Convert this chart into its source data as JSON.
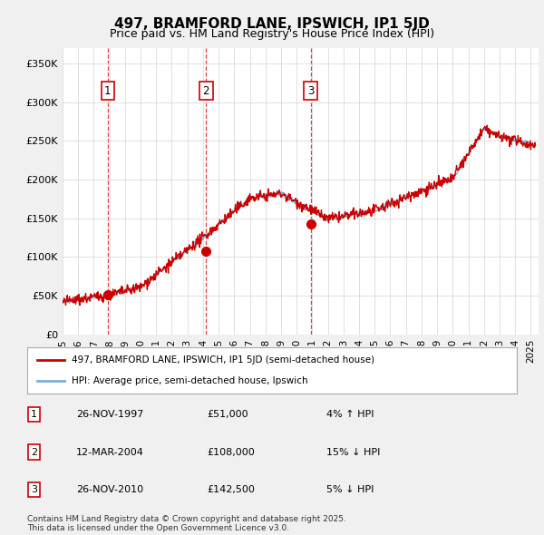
{
  "title": "497, BRAMFORD LANE, IPSWICH, IP1 5JD",
  "subtitle": "Price paid vs. HM Land Registry's House Price Index (HPI)",
  "ylabel_ticks": [
    "£0",
    "£50K",
    "£100K",
    "£150K",
    "£200K",
    "£250K",
    "£300K",
    "£350K"
  ],
  "ytick_values": [
    0,
    50,
    100,
    150,
    200,
    250,
    300,
    350
  ],
  "ylim": [
    0,
    370
  ],
  "xlim_start": 1995.0,
  "xlim_end": 2025.5,
  "line_color_red": "#cc0000",
  "line_color_blue": "#7aafd4",
  "background_color": "#f0f0f0",
  "plot_bg_color": "#ffffff",
  "transactions": [
    {
      "date_num": 1997.9,
      "price": 51,
      "label": "1"
    },
    {
      "date_num": 2004.2,
      "price": 108,
      "label": "2"
    },
    {
      "date_num": 2010.9,
      "price": 142.5,
      "label": "3"
    }
  ],
  "legend_red_label": "497, BRAMFORD LANE, IPSWICH, IP1 5JD (semi-detached house)",
  "legend_blue_label": "HPI: Average price, semi-detached house, Ipswich",
  "table_rows": [
    {
      "num": "1",
      "date": "26-NOV-1997",
      "price": "£51,000",
      "change": "4% ↑ HPI"
    },
    {
      "num": "2",
      "date": "12-MAR-2004",
      "price": "£108,000",
      "change": "15% ↓ HPI"
    },
    {
      "num": "3",
      "date": "26-NOV-2010",
      "price": "£142,500",
      "change": "5% ↓ HPI"
    }
  ],
  "footer": "Contains HM Land Registry data © Crown copyright and database right 2025.\nThis data is licensed under the Open Government Licence v3.0.",
  "xtick_years": [
    1995,
    1996,
    1997,
    1998,
    1999,
    2000,
    2001,
    2002,
    2003,
    2004,
    2005,
    2006,
    2007,
    2008,
    2009,
    2010,
    2011,
    2012,
    2013,
    2014,
    2015,
    2016,
    2017,
    2018,
    2019,
    2020,
    2021,
    2022,
    2023,
    2024,
    2025
  ]
}
